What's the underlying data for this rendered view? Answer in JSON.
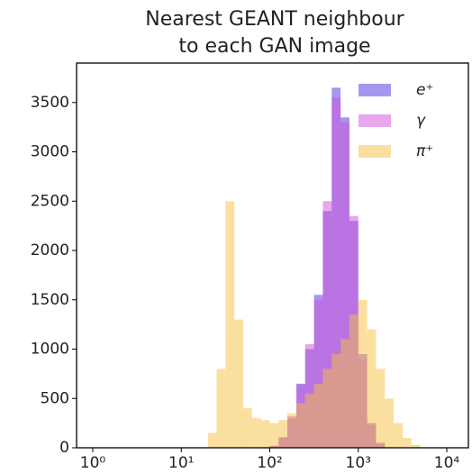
{
  "chart_data": {
    "type": "histogram",
    "title": [
      "Nearest GEANT neighbour",
      "to each GAN image"
    ],
    "log_x": true,
    "xlim": [
      0.656,
      17540
    ],
    "xticks": [
      {
        "value": 1,
        "label": "10⁰"
      },
      {
        "value": 10,
        "label": "10¹"
      },
      {
        "value": 100,
        "label": "10²"
      },
      {
        "value": 1000,
        "label": "10³"
      },
      {
        "value": 10000,
        "label": "10⁴"
      }
    ],
    "ylim": [
      0,
      3900
    ],
    "yticks": [
      0,
      500,
      1000,
      1500,
      2000,
      2500,
      3000,
      3500
    ],
    "legend": "upper right",
    "bins": [
      10,
      12.6,
      15.8,
      20,
      25.1,
      31.6,
      39.8,
      50.1,
      63.1,
      79.4,
      100,
      126,
      158,
      200,
      251,
      316,
      398,
      501,
      631,
      794,
      1000,
      1259,
      1585,
      1995,
      2512,
      3162,
      3981,
      5012
    ],
    "series": [
      {
        "name": "e⁺",
        "color": "#4b2fe0",
        "values": [
          0,
          0,
          0,
          0,
          0,
          0,
          0,
          0,
          0,
          0,
          20,
          100,
          300,
          650,
          1000,
          1550,
          2400,
          3650,
          3350,
          2300,
          950,
          250,
          50,
          0,
          0,
          0,
          0
        ]
      },
      {
        "name": "γ",
        "color": "#d050d8",
        "values": [
          0,
          0,
          0,
          0,
          0,
          0,
          0,
          0,
          0,
          0,
          20,
          110,
          320,
          640,
          1050,
          1500,
          2500,
          3550,
          3300,
          2350,
          900,
          230,
          40,
          0,
          0,
          0,
          0
        ]
      },
      {
        "name": "π⁺",
        "color": "#f5c040",
        "values": [
          0,
          0,
          0,
          150,
          800,
          2500,
          1300,
          400,
          300,
          280,
          250,
          280,
          350,
          450,
          550,
          650,
          800,
          950,
          1100,
          1350,
          1500,
          1200,
          800,
          500,
          250,
          100,
          30
        ]
      }
    ]
  }
}
